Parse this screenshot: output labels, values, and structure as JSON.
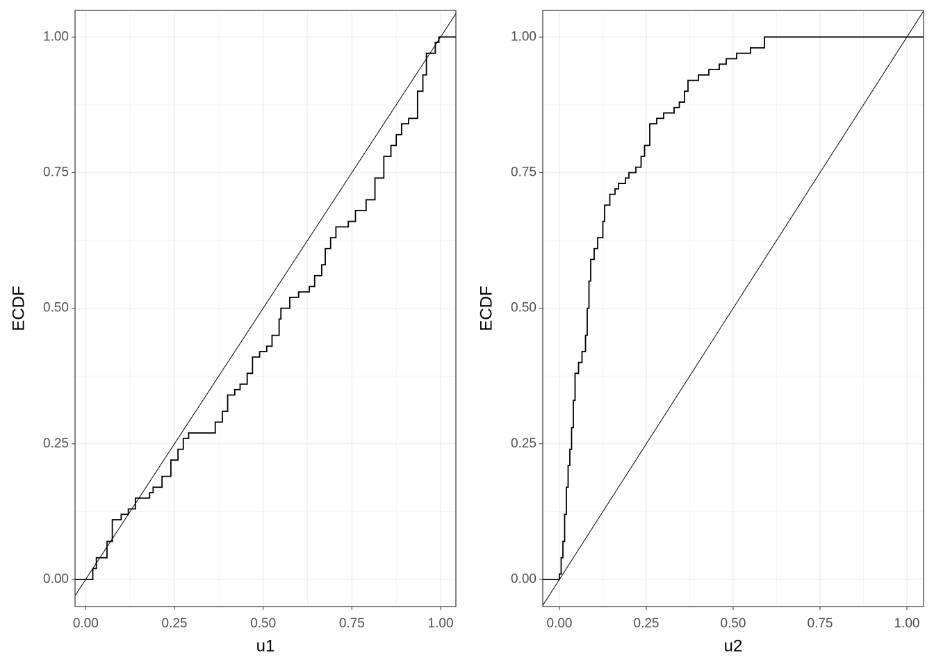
{
  "chart_data": [
    {
      "type": "step",
      "xlabel": "u1",
      "ylabel": "ECDF",
      "diagonal": true,
      "grid": true,
      "color": "#000000",
      "xlim": [
        -0.03,
        1.043
      ],
      "ylim": [
        -0.05,
        1.049
      ],
      "xticks": [
        {
          "value": 0,
          "label": "0.00"
        },
        {
          "value": 0.25,
          "label": "0.25"
        },
        {
          "value": 0.5,
          "label": "0.50"
        },
        {
          "value": 0.75,
          "label": "0.75"
        },
        {
          "value": 1,
          "label": "1.00"
        }
      ],
      "yticks": [
        {
          "value": 0,
          "label": "0.00"
        },
        {
          "value": 0.25,
          "label": "0.25"
        },
        {
          "value": 0.5,
          "label": "0.50"
        },
        {
          "value": 0.75,
          "label": "0.75"
        },
        {
          "value": 1,
          "label": "1.00"
        }
      ],
      "x": [
        -0.03,
        0.02,
        0.03,
        0.06,
        0.075,
        0.1,
        0.12,
        0.14,
        0.18,
        0.19,
        0.215,
        0.24,
        0.26,
        0.275,
        0.29,
        0.365,
        0.385,
        0.4,
        0.42,
        0.435,
        0.455,
        0.47,
        0.49,
        0.51,
        0.525,
        0.545,
        0.55,
        0.575,
        0.6,
        0.63,
        0.645,
        0.665,
        0.675,
        0.69,
        0.705,
        0.74,
        0.76,
        0.79,
        0.815,
        0.84,
        0.86,
        0.875,
        0.89,
        0.91,
        0.935,
        0.95,
        0.96,
        0.985,
        0.995,
        1.043
      ],
      "y": [
        0,
        0.02,
        0.04,
        0.07,
        0.11,
        0.12,
        0.13,
        0.15,
        0.16,
        0.17,
        0.19,
        0.22,
        0.24,
        0.26,
        0.27,
        0.29,
        0.31,
        0.34,
        0.35,
        0.36,
        0.38,
        0.41,
        0.42,
        0.43,
        0.45,
        0.48,
        0.5,
        0.52,
        0.53,
        0.54,
        0.56,
        0.58,
        0.61,
        0.63,
        0.65,
        0.66,
        0.68,
        0.7,
        0.74,
        0.78,
        0.8,
        0.82,
        0.84,
        0.85,
        0.9,
        0.93,
        0.97,
        0.99,
        1,
        1
      ]
    },
    {
      "type": "step",
      "xlabel": "u2",
      "ylabel": "ECDF",
      "diagonal": true,
      "grid": true,
      "color": "#000000",
      "xlim": [
        -0.048,
        1.048
      ],
      "ylim": [
        -0.05,
        1.049
      ],
      "xticks": [
        {
          "value": 0,
          "label": "0.00"
        },
        {
          "value": 0.25,
          "label": "0.25"
        },
        {
          "value": 0.5,
          "label": "0.50"
        },
        {
          "value": 0.75,
          "label": "0.75"
        },
        {
          "value": 1,
          "label": "1.00"
        }
      ],
      "yticks": [
        {
          "value": 0,
          "label": "0.00"
        },
        {
          "value": 0.25,
          "label": "0.25"
        },
        {
          "value": 0.5,
          "label": "0.50"
        },
        {
          "value": 0.75,
          "label": "0.75"
        },
        {
          "value": 1,
          "label": "1.00"
        }
      ],
      "x": [
        -0.048,
        0.0,
        0.005,
        0.01,
        0.015,
        0.02,
        0.025,
        0.03,
        0.035,
        0.04,
        0.045,
        0.055,
        0.065,
        0.075,
        0.08,
        0.085,
        0.09,
        0.1,
        0.11,
        0.125,
        0.13,
        0.145,
        0.16,
        0.17,
        0.19,
        0.2,
        0.22,
        0.235,
        0.245,
        0.26,
        0.28,
        0.3,
        0.33,
        0.345,
        0.36,
        0.37,
        0.4,
        0.43,
        0.46,
        0.48,
        0.51,
        0.55,
        0.59,
        1.048
      ],
      "y": [
        0,
        0.01,
        0.04,
        0.07,
        0.12,
        0.17,
        0.21,
        0.24,
        0.28,
        0.33,
        0.38,
        0.4,
        0.42,
        0.45,
        0.5,
        0.55,
        0.59,
        0.61,
        0.63,
        0.66,
        0.69,
        0.71,
        0.72,
        0.73,
        0.74,
        0.75,
        0.76,
        0.78,
        0.8,
        0.84,
        0.85,
        0.86,
        0.87,
        0.88,
        0.9,
        0.92,
        0.93,
        0.94,
        0.95,
        0.96,
        0.97,
        0.98,
        1,
        1
      ]
    }
  ]
}
